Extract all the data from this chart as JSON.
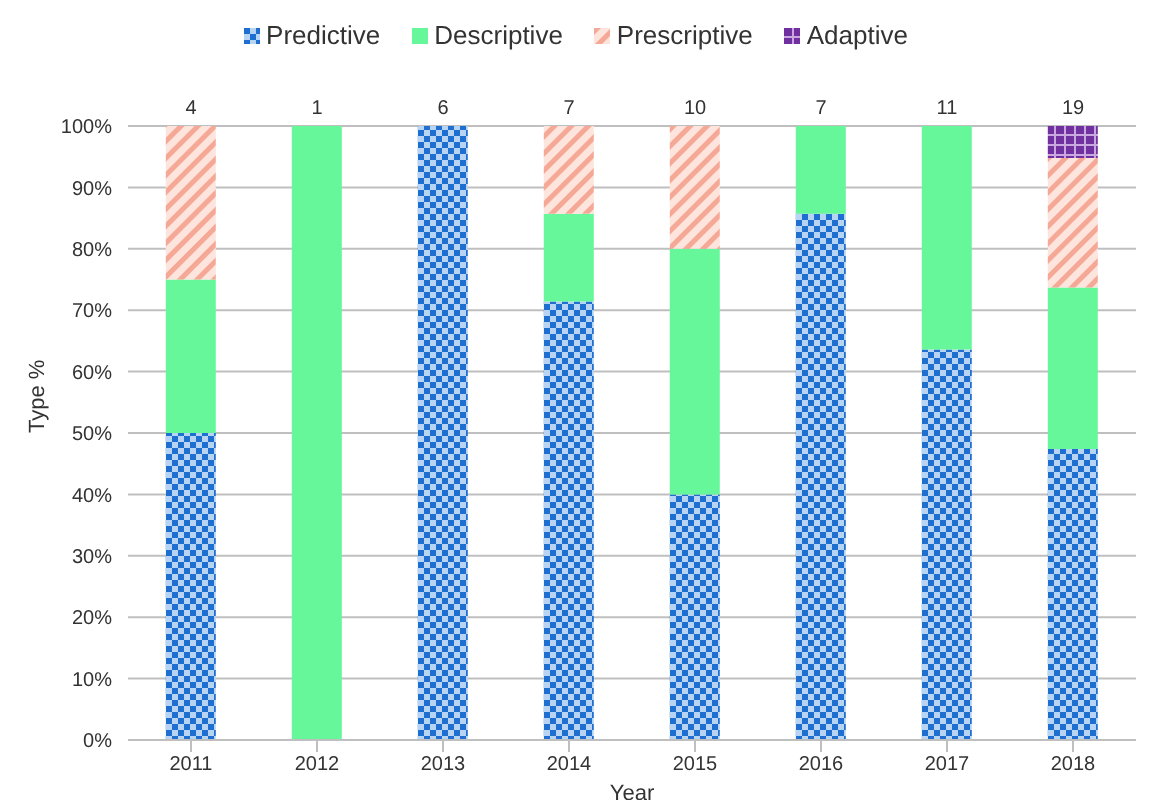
{
  "chart_data": {
    "type": "bar",
    "stacked": true,
    "xlabel": "Year",
    "ylabel": "Type %",
    "categories": [
      "2011",
      "2012",
      "2013",
      "2014",
      "2015",
      "2016",
      "2017",
      "2018"
    ],
    "series": [
      {
        "name": "Predictive",
        "color": "#1f6fd0",
        "values": [
          50,
          null,
          100,
          71.4,
          40,
          85.7,
          63.6,
          47.4
        ]
      },
      {
        "name": "Descriptive",
        "color": "#66f79a",
        "values": [
          25,
          100,
          null,
          14.3,
          40,
          14.3,
          36.4,
          26.3
        ]
      },
      {
        "name": "Prescriptive",
        "color": "#f6a896",
        "values": [
          25,
          null,
          null,
          14.3,
          20,
          null,
          null,
          21.1
        ]
      },
      {
        "name": "Adaptive",
        "color": "#7030a0",
        "values": [
          null,
          null,
          null,
          null,
          null,
          null,
          null,
          5.3
        ]
      }
    ],
    "annotations": [
      {
        "text": "4",
        "x": "2011",
        "y": 100
      },
      {
        "text": "1",
        "x": "2012",
        "y": 100
      },
      {
        "text": "6",
        "x": "2013",
        "y": 100
      },
      {
        "text": "7",
        "x": "2014",
        "y": 100
      },
      {
        "text": "10",
        "x": "2015",
        "y": 100
      },
      {
        "text": "7",
        "x": "2016",
        "y": 100
      },
      {
        "text": "11",
        "x": "2017",
        "y": 100
      },
      {
        "text": "19",
        "x": "2018",
        "y": 100
      }
    ],
    "ylim": [
      0,
      100
    ],
    "yticks": [
      {
        "value": 0,
        "label": "0%"
      },
      {
        "value": 10,
        "label": "10%"
      },
      {
        "value": 20,
        "label": "20%"
      },
      {
        "value": 30,
        "label": "30%"
      },
      {
        "value": 40,
        "label": "40%"
      },
      {
        "value": 50,
        "label": "50%"
      },
      {
        "value": 60,
        "label": "60%"
      },
      {
        "value": 70,
        "label": "70%"
      },
      {
        "value": 80,
        "label": "80%"
      },
      {
        "value": 90,
        "label": "90%"
      },
      {
        "value": 100,
        "label": "100%"
      }
    ],
    "grid": "y",
    "legend": "top"
  }
}
